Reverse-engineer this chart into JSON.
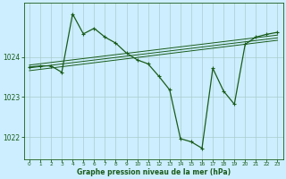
{
  "title": "Graphe pression niveau de la mer (hPa)",
  "bg_color": "#cceeff",
  "grid_color": "#aacccc",
  "line_color": "#1a5c1a",
  "xlim": [
    -0.5,
    23.5
  ],
  "ylim": [
    1021.45,
    1025.35
  ],
  "yticks": [
    1022,
    1023,
    1024
  ],
  "xticks": [
    0,
    1,
    2,
    3,
    4,
    5,
    6,
    7,
    8,
    9,
    10,
    11,
    12,
    13,
    14,
    15,
    16,
    17,
    18,
    19,
    20,
    21,
    22,
    23
  ],
  "main_x": [
    0,
    1,
    2,
    3,
    4,
    5,
    6,
    7,
    8,
    9,
    10,
    11,
    12,
    13,
    14,
    15,
    16,
    17,
    18,
    19,
    20,
    21,
    22,
    23
  ],
  "main_y": [
    1023.75,
    1023.78,
    1023.78,
    1023.62,
    1025.08,
    1024.58,
    1024.72,
    1024.5,
    1024.35,
    1024.1,
    1023.93,
    1023.83,
    1023.52,
    1023.18,
    1021.96,
    1021.88,
    1021.72,
    1023.72,
    1023.15,
    1022.82,
    1024.32,
    1024.5,
    1024.57,
    1024.62
  ],
  "ref_lines": [
    {
      "x": [
        0,
        23
      ],
      "y": [
        1023.8,
        1024.55
      ]
    },
    {
      "x": [
        0,
        23
      ],
      "y": [
        1023.73,
        1024.48
      ]
    },
    {
      "x": [
        0,
        23
      ],
      "y": [
        1023.66,
        1024.42
      ]
    }
  ]
}
